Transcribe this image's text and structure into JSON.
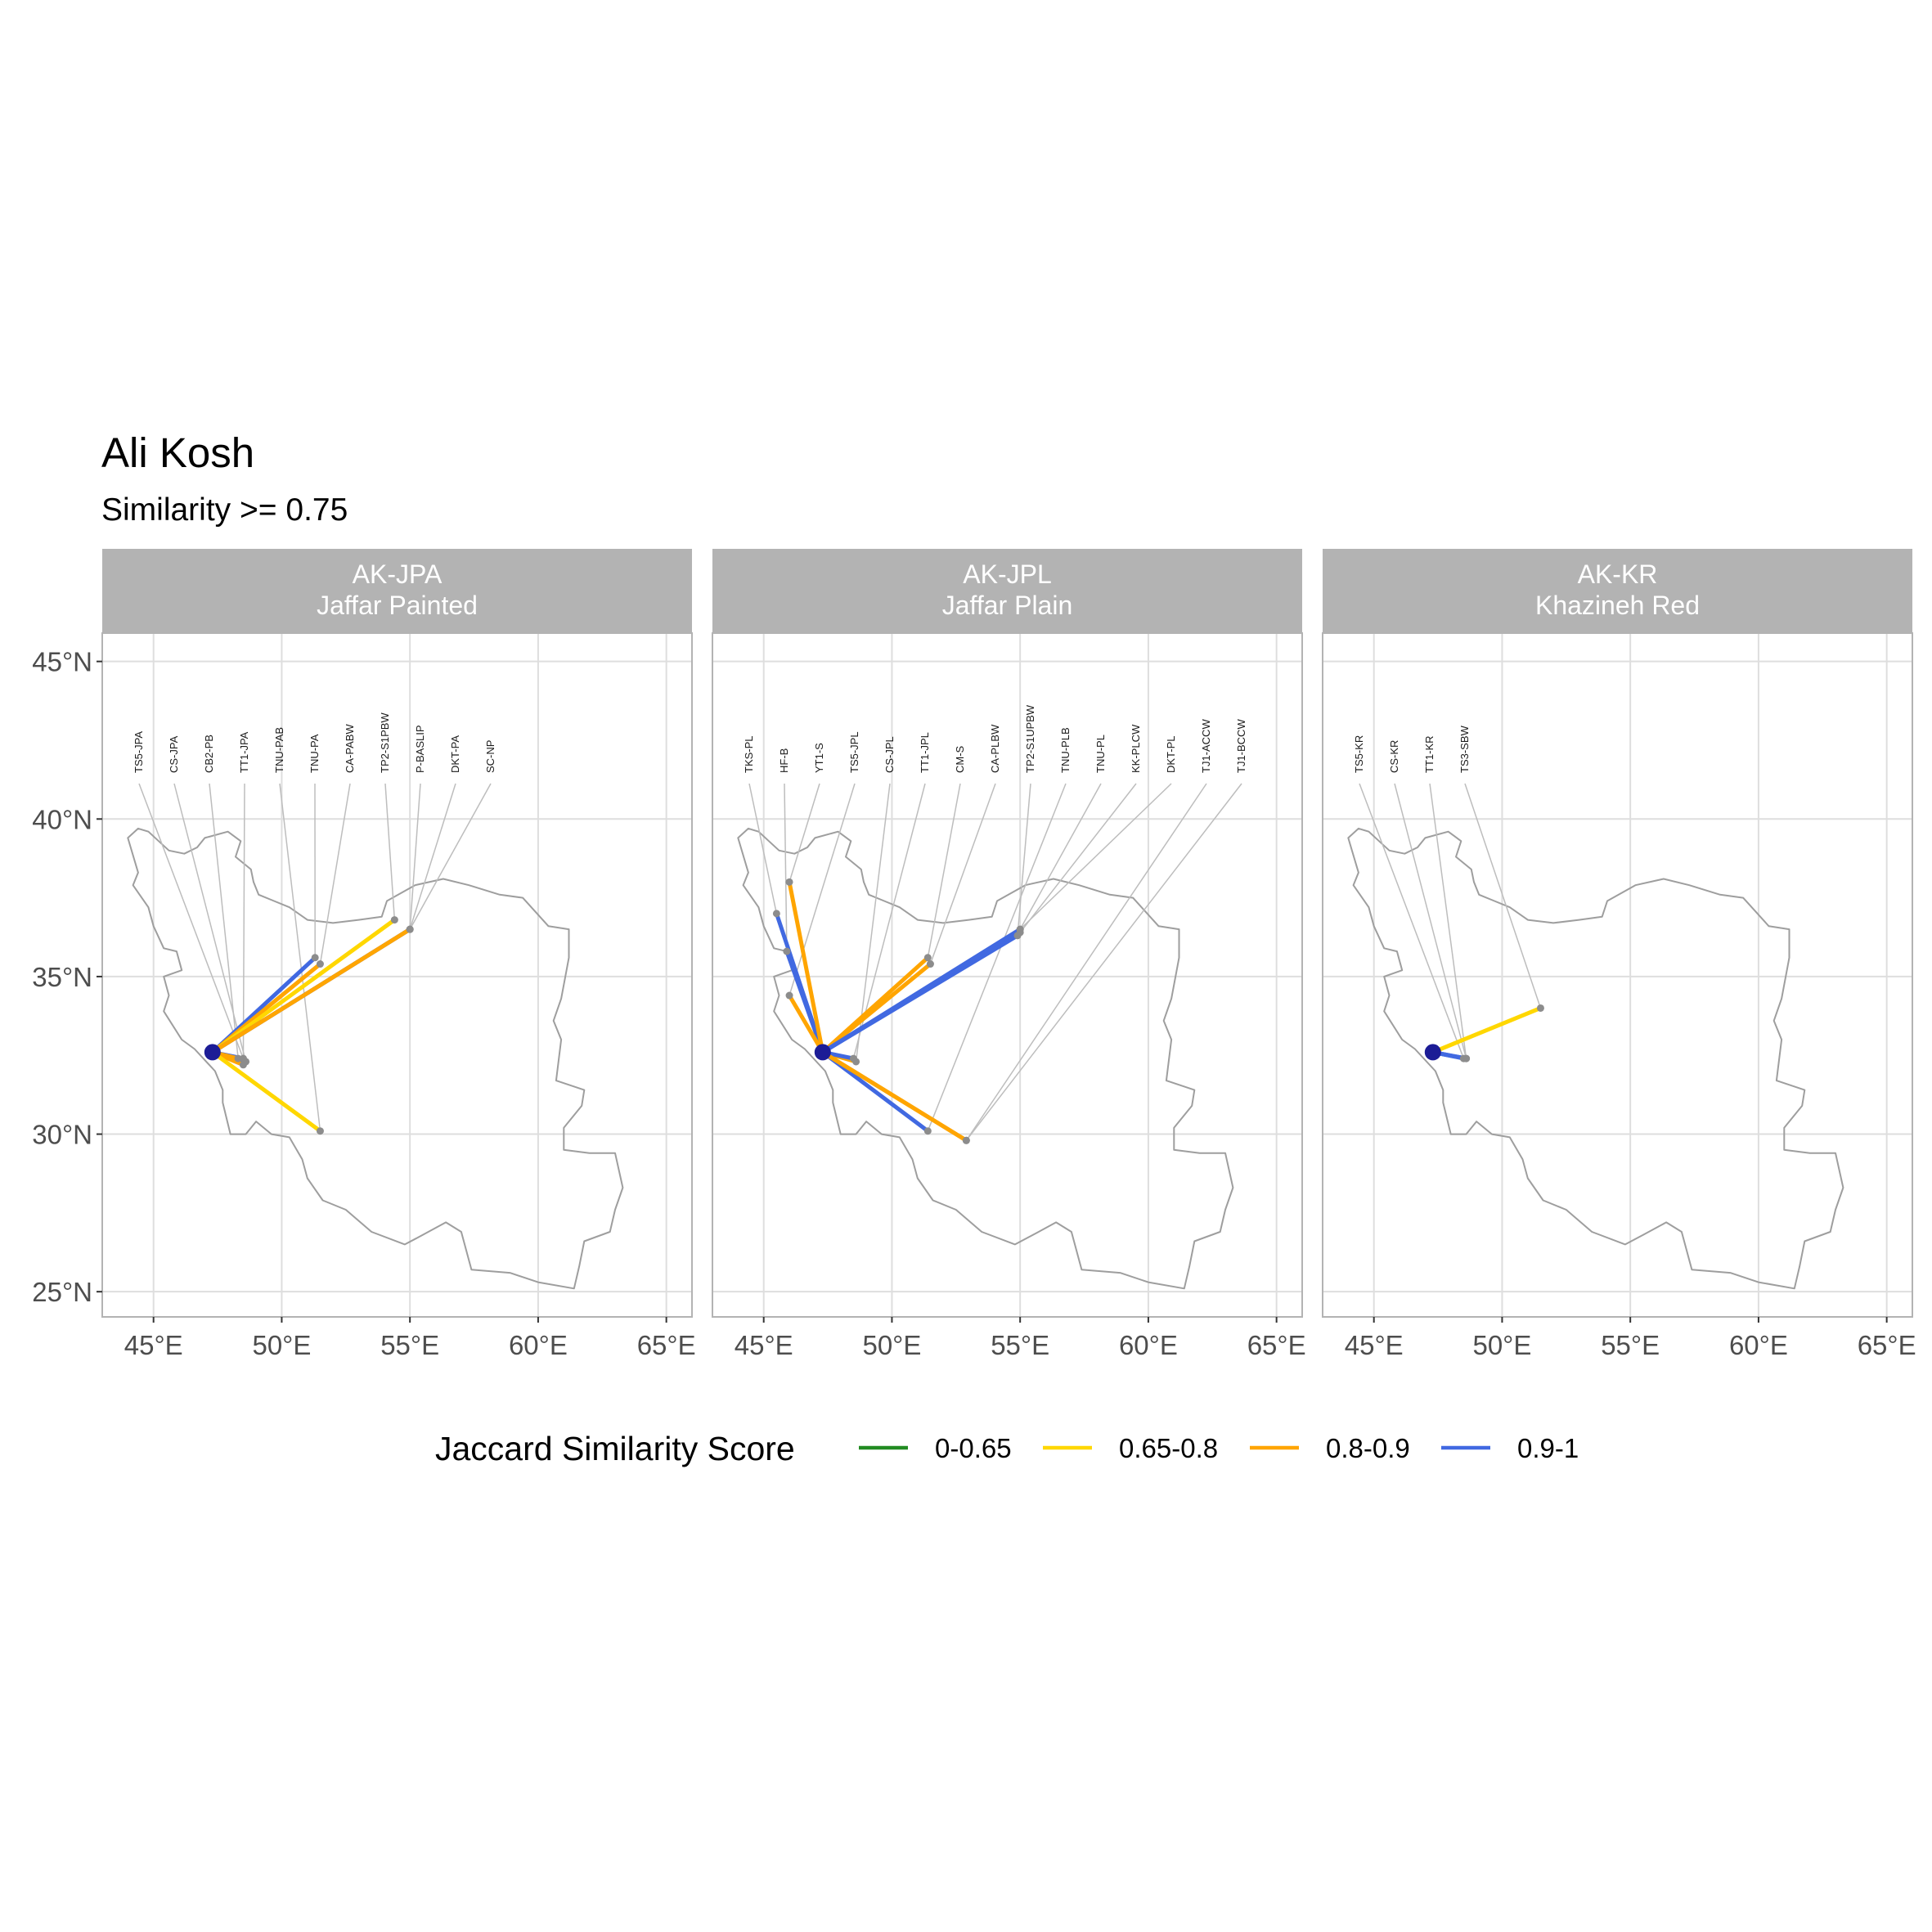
{
  "title": "Ali Kosh",
  "subtitle": "Similarity >= 0.75",
  "legend": {
    "title": "Jaccard Similarity Score",
    "items": [
      {
        "label": "0-0.65",
        "color": "#228B22"
      },
      {
        "label": "0.65-0.8",
        "color": "#FFD700"
      },
      {
        "label": "0.8-0.9",
        "color": "#FFA500"
      },
      {
        "label": "0.9-1",
        "color": "#4169E1"
      }
    ]
  },
  "chart_data": {
    "type": "map",
    "x_axis": {
      "ticks": [
        45,
        50,
        55,
        60,
        65
      ],
      "tick_labels": [
        "45°E",
        "50°E",
        "55°E",
        "60°E",
        "65°E"
      ],
      "range": [
        43,
        66
      ]
    },
    "y_axis": {
      "ticks": [
        25,
        30,
        35,
        40,
        45
      ],
      "tick_labels": [
        "25°N",
        "30°N",
        "35°N",
        "40°N",
        "45°N"
      ],
      "range": [
        24.2,
        45.9
      ]
    },
    "grid": true,
    "colors": {
      "0-0.65": "#228B22",
      "0.65-0.8": "#FFD700",
      "0.8-0.9": "#FFA500",
      "0.9-1": "#4169E1"
    },
    "origin": {
      "lon": 47.3,
      "lat": 32.6
    },
    "panels": [
      {
        "code": "AK-JPA",
        "name": "Jaffar Painted",
        "sites": [
          {
            "label": "TS5-JPA",
            "lon": 48.5,
            "lat": 32.4,
            "class": "0.9-1"
          },
          {
            "label": "CS-JPA",
            "lon": 48.6,
            "lat": 32.3,
            "class": "0.9-1"
          },
          {
            "label": "CB2-PB",
            "lon": 48.3,
            "lat": 32.4,
            "class": "0.8-0.9"
          },
          {
            "label": "TT1-JPA",
            "lon": 48.5,
            "lat": 32.2,
            "class": "0.8-0.9"
          },
          {
            "label": "TNU-PAB",
            "lon": 51.5,
            "lat": 30.1,
            "class": "0.65-0.8"
          },
          {
            "label": "TNU-PA",
            "lon": 51.3,
            "lat": 35.6,
            "class": "0.9-1"
          },
          {
            "label": "CA-PABW",
            "lon": 51.5,
            "lat": 35.4,
            "class": "0.8-0.9"
          },
          {
            "label": "TP2-S1PBW",
            "lon": 54.4,
            "lat": 36.8,
            "class": "0.65-0.8"
          },
          {
            "label": "P-BASLIP",
            "lon": 55.0,
            "lat": 36.5,
            "class": "0.8-0.9"
          },
          {
            "label": "DKT-PA",
            "lon": 55.0,
            "lat": 36.5,
            "class": "0.9-1"
          },
          {
            "label": "SC-NP",
            "lon": 55.0,
            "lat": 36.5,
            "class": "0.8-0.9"
          }
        ]
      },
      {
        "code": "AK-JPL",
        "name": "Jaffar Plain",
        "sites": [
          {
            "label": "TKS-PL",
            "lon": 45.5,
            "lat": 37.0,
            "class": "0.9-1"
          },
          {
            "label": "HF-B",
            "lon": 45.9,
            "lat": 35.8,
            "class": "0.9-1"
          },
          {
            "label": "YT1-S",
            "lon": 46.0,
            "lat": 38.0,
            "class": "0.8-0.9"
          },
          {
            "label": "TS5-JPL",
            "lon": 46.0,
            "lat": 34.4,
            "class": "0.8-0.9"
          },
          {
            "label": "CS-JPL",
            "lon": 48.6,
            "lat": 32.3,
            "class": "0.8-0.9"
          },
          {
            "label": "TT1-JPL",
            "lon": 48.5,
            "lat": 32.4,
            "class": "0.9-1"
          },
          {
            "label": "CM-S",
            "lon": 51.4,
            "lat": 35.6,
            "class": "0.8-0.9"
          },
          {
            "label": "CA-PLBW",
            "lon": 51.5,
            "lat": 35.4,
            "class": "0.8-0.9"
          },
          {
            "label": "TP2-S1UPBW",
            "lon": 54.9,
            "lat": 36.3,
            "class": "0.9-1"
          },
          {
            "label": "TNU-PLB",
            "lon": 51.4,
            "lat": 30.1,
            "class": "0.9-1"
          },
          {
            "label": "TNU-PL",
            "lon": 55.0,
            "lat": 36.5,
            "class": "0.9-1"
          },
          {
            "label": "KK-PLCW",
            "lon": 55.0,
            "lat": 36.4,
            "class": "0.9-1"
          },
          {
            "label": "DKT-PL",
            "lon": 55.0,
            "lat": 36.5,
            "class": "0.9-1"
          },
          {
            "label": "TJ1-ACCW",
            "lon": 52.9,
            "lat": 29.8,
            "class": "0.8-0.9"
          },
          {
            "label": "TJ1-BCCW",
            "lon": 52.9,
            "lat": 29.8,
            "class": "0.8-0.9"
          }
        ]
      },
      {
        "code": "AK-KR",
        "name": "Khazineh Red",
        "sites": [
          {
            "label": "TS5-KR",
            "lon": 48.5,
            "lat": 32.4,
            "class": "0.9-1"
          },
          {
            "label": "CS-KR",
            "lon": 48.6,
            "lat": 32.4,
            "class": "0.9-1"
          },
          {
            "label": "TT1-KR",
            "lon": 48.6,
            "lat": 32.4,
            "class": "0.9-1"
          },
          {
            "label": "TS3-SBW",
            "lon": 51.5,
            "lat": 34.0,
            "class": "0.65-0.8"
          }
        ]
      }
    ]
  }
}
